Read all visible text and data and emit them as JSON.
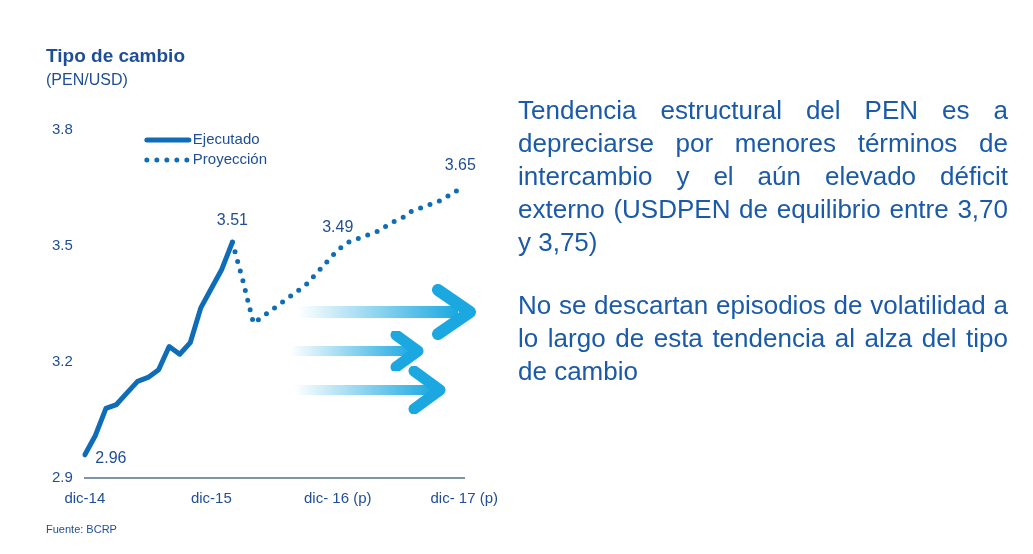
{
  "chart_data": {
    "type": "line",
    "title": "Tipo de cambio",
    "subtitle": "(PEN/USD)",
    "categories": [
      "dic-14",
      null,
      null,
      null,
      null,
      null,
      null,
      null,
      null,
      null,
      null,
      null,
      "dic-15",
      null,
      null,
      null,
      null,
      null,
      null,
      null,
      null,
      null,
      null,
      null,
      "dic- 16 (p)",
      null,
      null,
      null,
      null,
      null,
      null,
      null,
      null,
      null,
      null,
      null,
      "dic- 17 (p)"
    ],
    "series": [
      {
        "name": "Ejecutado",
        "color": "#0f6db8",
        "line_style": "solid",
        "values": [
          2.96,
          3.01,
          3.08,
          3.09,
          3.12,
          3.15,
          3.16,
          3.18,
          3.24,
          3.22,
          3.25,
          3.34,
          3.39,
          3.44,
          3.51,
          null,
          null,
          null,
          null,
          null,
          null,
          null,
          null,
          null,
          null,
          null,
          null,
          null,
          null,
          null,
          null,
          null,
          null,
          null,
          null,
          null,
          null
        ],
        "value_labels": [
          "2.96",
          null,
          null,
          null,
          null,
          null,
          null,
          null,
          null,
          null,
          null,
          null,
          null,
          null,
          "3.51",
          null,
          null,
          null,
          null,
          null,
          null,
          null,
          null,
          null,
          null,
          null,
          null,
          null,
          null,
          null,
          null,
          null,
          null,
          null,
          null,
          null,
          null
        ]
      },
      {
        "name": "Proyección",
        "color": "#0f6db8",
        "line_style": "dotted",
        "values": [
          null,
          null,
          null,
          null,
          null,
          null,
          null,
          null,
          null,
          null,
          null,
          null,
          null,
          null,
          3.51,
          3.41,
          3.3,
          3.32,
          3.34,
          3.36,
          3.38,
          3.4,
          3.43,
          3.46,
          3.49,
          3.51,
          3.52,
          3.53,
          3.54,
          3.56,
          3.57,
          3.59,
          3.6,
          3.61,
          3.62,
          3.64,
          3.65
        ],
        "value_labels": [
          null,
          null,
          null,
          null,
          null,
          null,
          null,
          null,
          null,
          null,
          null,
          null,
          null,
          null,
          null,
          null,
          null,
          null,
          null,
          null,
          null,
          null,
          null,
          null,
          "3.49",
          null,
          null,
          null,
          null,
          null,
          null,
          null,
          null,
          null,
          null,
          null,
          "3.65"
        ]
      }
    ],
    "ylim": [
      2.9,
      3.8
    ],
    "yticks": [
      2.9,
      3.2,
      3.5,
      3.8
    ],
    "grid": false,
    "legend": "top left",
    "marker": "none",
    "annotations": [
      "Tendencia estructural del PEN es a depreciarse por menores términos de intercambio y el aún elevado déficit externo (USDPEN de equilibrio entre 3,70 y 3,75)",
      "No se descartan episodios de volatilidad a lo largo de esta tendencia al alza del tipo de cambio",
      "Fuente: BCRP"
    ]
  }
}
